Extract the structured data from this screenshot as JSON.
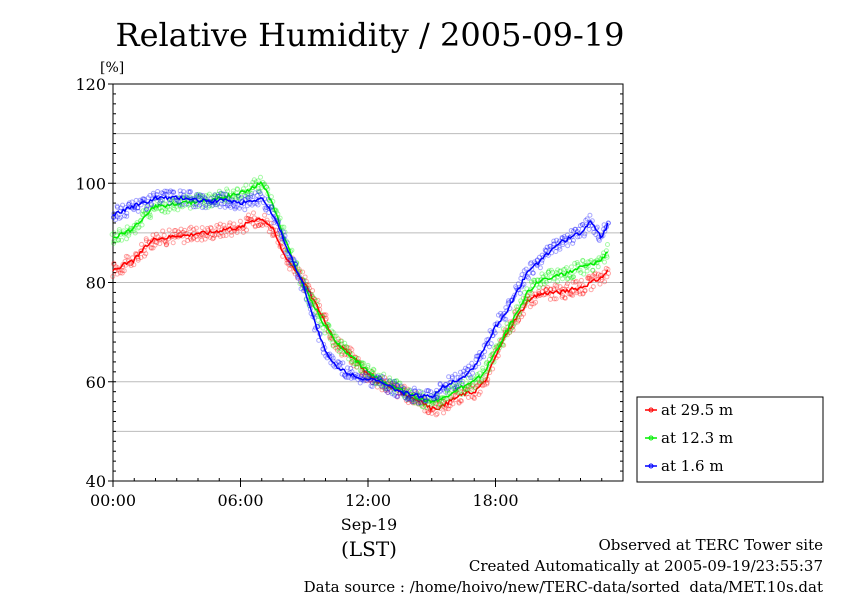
{
  "chart_data": {
    "type": "line",
    "title": "Relative Humidity / 2005-09-19",
    "ylabel": "[%]",
    "ylim": [
      40,
      120
    ],
    "yticks": [
      40,
      60,
      80,
      100,
      120
    ],
    "yticks_labeled": [
      "40",
      "60",
      "80",
      "100",
      "120"
    ],
    "xlim": [
      0,
      24
    ],
    "xtick_labels": [
      "00:00",
      "06:00",
      "12:00",
      "18:00"
    ],
    "xtick_hours": [
      0,
      6,
      12,
      18
    ],
    "date_label": "Sep-19",
    "timezone_label": "(LST)",
    "grid": true,
    "legend_position": "right",
    "x_hours": [
      0,
      0.5,
      1,
      1.5,
      2,
      2.5,
      3,
      3.5,
      4,
      4.5,
      5,
      5.5,
      6,
      6.5,
      7,
      7.5,
      8,
      8.5,
      9,
      9.5,
      10,
      10.5,
      11,
      11.5,
      12,
      12.5,
      13,
      13.5,
      14,
      14.5,
      15,
      15.5,
      16,
      16.5,
      17,
      17.5,
      18,
      18.5,
      19,
      19.5,
      20,
      20.5,
      21,
      21.5,
      22,
      22.5,
      23,
      23.3
    ],
    "series": [
      {
        "name": "at 29.5 m",
        "color": "#ff0000",
        "values": [
          82.5,
          83.5,
          84.5,
          87,
          89,
          89,
          89.5,
          89.5,
          90,
          90,
          90.5,
          91,
          91,
          92.5,
          93,
          91,
          86,
          83,
          80,
          76,
          72,
          68,
          66,
          64,
          61.5,
          60,
          59,
          58,
          57,
          56,
          54.5,
          55,
          56.5,
          57.5,
          58,
          60,
          65,
          69.5,
          73,
          76,
          77.5,
          78,
          78,
          78.5,
          79,
          80,
          81,
          82.5
        ]
      },
      {
        "name": "at 12.3 m",
        "color": "#00ee00",
        "values": [
          89,
          90,
          91,
          93.5,
          95.5,
          95.5,
          96,
          96,
          96.5,
          96.5,
          97,
          97.5,
          98,
          99,
          100,
          96,
          90,
          84,
          79,
          75,
          71,
          68,
          66,
          64,
          62,
          60.5,
          59.5,
          58.5,
          57.5,
          56.5,
          56,
          56.5,
          58,
          59,
          60,
          62,
          66,
          70,
          74,
          78,
          80,
          81,
          81.5,
          82,
          83,
          83.5,
          84.5,
          86.5
        ]
      },
      {
        "name": "at 1.6 m",
        "color": "#0000ff",
        "values": [
          93.5,
          94.5,
          95.5,
          96,
          97,
          97,
          97,
          97,
          96.5,
          96.5,
          96.5,
          96.5,
          96,
          96.5,
          97,
          94,
          89,
          84,
          79,
          72,
          66,
          63,
          62,
          61,
          60.5,
          60,
          59,
          58,
          57.5,
          57,
          57,
          59,
          60,
          61,
          63,
          67,
          71,
          74,
          78,
          82,
          84,
          86,
          88,
          89,
          90,
          92.5,
          89,
          92
        ]
      }
    ],
    "annotations": [
      "Observed at TERC Tower site",
      "Created Automatically at 2005-09-19/23:55:37",
      "Data source : /home/hoivo/new/TERC-data/sorted  data/MET.10s.dat"
    ]
  }
}
